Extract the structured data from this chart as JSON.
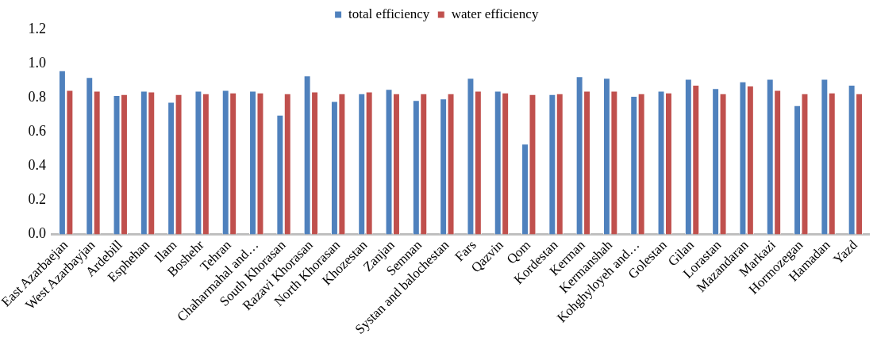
{
  "chart_data": {
    "type": "bar",
    "categories": [
      "East Azarbaejan",
      "West Azarbayjan",
      "Ardebill",
      "Esphehan",
      "Ilam",
      "Boshehr",
      "Tehran",
      "Chaharmahal and…",
      "South Khorasan",
      "Razavi Khorasan",
      "North Khorasan",
      "Khozestan",
      "Zanjan",
      "Semnan",
      "Systan and balochestan",
      "Fars",
      "Qazvin",
      "Qom",
      "Kordestan",
      "Kerman",
      "Kermanshah",
      "Kohghyloyeh and…",
      "Golestan",
      "Gilan",
      "Lorastan",
      "Mazandaran",
      "Markazi",
      "Hormozegan",
      "Hamadan",
      "Yazd"
    ],
    "series": [
      {
        "name": "total efficiency",
        "color": "#4f81bd",
        "values": [
          0.96,
          0.92,
          0.815,
          0.84,
          0.775,
          0.84,
          0.845,
          0.84,
          0.7,
          0.93,
          0.78,
          0.825,
          0.85,
          0.785,
          0.795,
          0.915,
          0.84,
          0.53,
          0.82,
          0.925,
          0.915,
          0.81,
          0.84,
          0.91,
          0.855,
          0.895,
          0.91,
          0.755,
          0.91,
          0.875
        ]
      },
      {
        "name": "water efficiency",
        "color": "#c0504d",
        "values": [
          0.845,
          0.84,
          0.82,
          0.835,
          0.82,
          0.825,
          0.83,
          0.83,
          0.825,
          0.835,
          0.825,
          0.835,
          0.825,
          0.825,
          0.825,
          0.84,
          0.83,
          0.82,
          0.825,
          0.84,
          0.84,
          0.825,
          0.83,
          0.875,
          0.825,
          0.87,
          0.845,
          0.825,
          0.83,
          0.825
        ]
      }
    ],
    "ylim": [
      0,
      1.2
    ],
    "yticks": [
      {
        "value": 0,
        "label": "0.0"
      },
      {
        "value": 0.2,
        "label": "0.2"
      },
      {
        "value": 0.4,
        "label": "0.4"
      },
      {
        "value": 0.6,
        "label": "0.6"
      },
      {
        "value": 0.8,
        "label": "0.8"
      },
      {
        "value": 1,
        "label": "1.0"
      },
      {
        "value": 1.2,
        "label": "1.2"
      }
    ],
    "grid": false,
    "legend": "top"
  }
}
